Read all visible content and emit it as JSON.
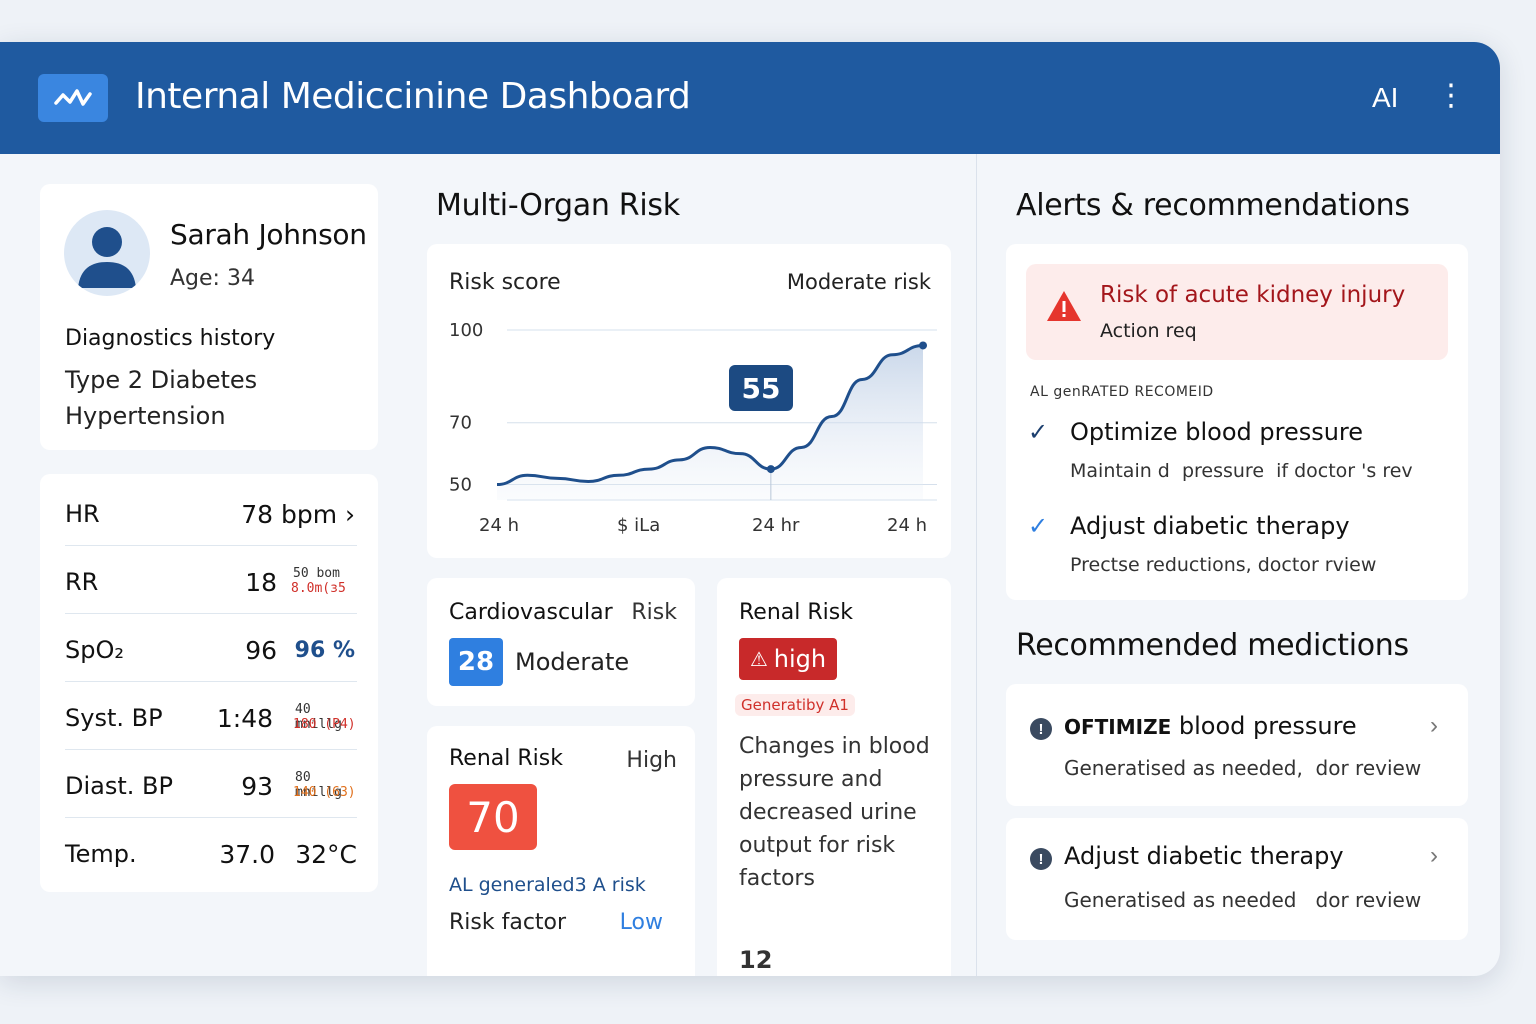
{
  "header": {
    "title": "Internal Mediccinine Dashboard",
    "ai_label": "AI",
    "more_label": "⋮"
  },
  "patient": {
    "name": "Sarah Johnson",
    "age": "Age: 34",
    "history_title": "Diagnostics history",
    "history": [
      "Type 2 Diabetes",
      "Hypertension"
    ]
  },
  "vitals": [
    {
      "label": "HR",
      "value": "78 bpm ›",
      "sub1": "",
      "sub2": ""
    },
    {
      "label": "RR",
      "value": "18",
      "sub1": "50 bom",
      "sub2": "8.0m(з5"
    },
    {
      "label": "SpO₂",
      "value": "96",
      "value2": "96 %",
      "sub1": "",
      "sub2": ""
    },
    {
      "label": "Syst. BP",
      "value": "1:48",
      "sub1": "40 mnillg",
      "sub2": "180 (P4)"
    },
    {
      "label": "Diast. BP",
      "value": "93",
      "sub1": "80 mnillg",
      "sub2": "140 (63)"
    },
    {
      "label": "Temp.",
      "value": "37.0",
      "value2": "32°C",
      "sub1": "",
      "sub2": ""
    }
  ],
  "multi_organ": {
    "title": "Multi-Organ Risk",
    "chart_label": "Risk score",
    "chart_status": "Moderate risk",
    "callout": "55"
  },
  "chart_data": {
    "type": "area",
    "title": "",
    "ylabel": "",
    "xlabel": "",
    "y_ticks": [
      100,
      70,
      50
    ],
    "x_ticks": [
      "24 h",
      "$ iLa",
      "24 hr",
      "24 h"
    ],
    "ylim": [
      45,
      100
    ],
    "series": [
      {
        "values": [
          50,
          53,
          52,
          51,
          53,
          55,
          58,
          62,
          60,
          55,
          62,
          72,
          84,
          92,
          95
        ]
      }
    ],
    "highlight_index": 9,
    "highlight_value": 55,
    "grid": true,
    "color": "#1f4f8c"
  },
  "cardio": {
    "title": "Cardiovascular",
    "title_right": "Risk",
    "score": "28",
    "level": "Moderate"
  },
  "renal_left": {
    "title": "Renal Risk",
    "level": "High",
    "score": "70",
    "ai_text": "AL generaled3 A risk",
    "factor_label": "Risk factor",
    "factor_value": "Low"
  },
  "renal_right": {
    "title": "Renal Risk",
    "badge": "high",
    "generated": "Generatiby A1",
    "description": "Changes in blood pressure and decreased urine output for risk factors",
    "count": "12"
  },
  "alerts": {
    "title": "Alerts & recommendations",
    "alert_title": "Risk of acute kidney injury",
    "alert_sub": "Action req",
    "ai_heading": "AL genRATED RECOMEID",
    "recs": [
      {
        "title": "Optimize blood pressure",
        "sub": "Maintain d  pressure  if doctor 's rev"
      },
      {
        "title": "Adjust diabetic therapy",
        "sub": "Prectse reductions, doctor rview"
      }
    ]
  },
  "medications": {
    "title": "Recommended medictions",
    "items": [
      {
        "title_bold": "OFTIMIZE",
        "title_rest": " blood pressure",
        "sub": "Generatised as needed,  dor review"
      },
      {
        "title_bold": "",
        "title_rest": "Adjust diabetic therapy",
        "sub": "Generatised as needed   dor review"
      }
    ]
  },
  "colors": {
    "header": "#1f5aa0",
    "accent_blue": "#2f7fe0",
    "danger": "#e24a3a",
    "dark_navy": "#1c3f6e"
  }
}
